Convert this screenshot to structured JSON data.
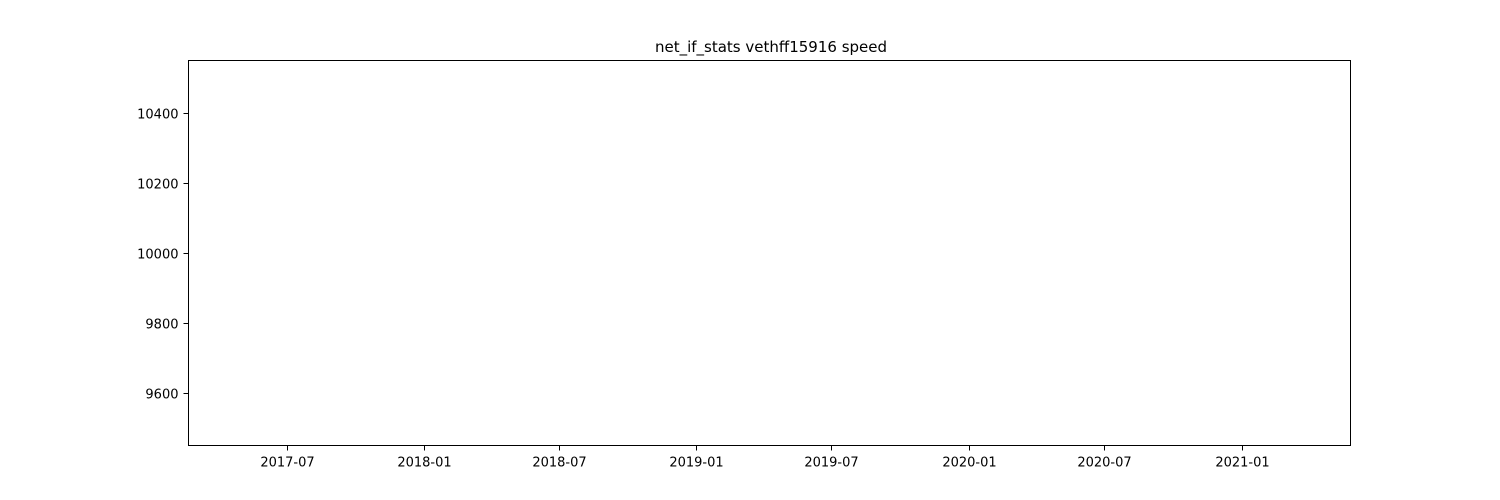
{
  "chart_data": {
    "type": "line",
    "title": "net_if_stats vethff15916 speed",
    "xlabel": "",
    "ylabel": "",
    "x_axis_type": "date",
    "xlim": [
      "2017-02-19",
      "2021-05-27"
    ],
    "ylim": [
      9450,
      10550
    ],
    "x_ticks": [
      "2017-07",
      "2018-01",
      "2018-07",
      "2019-01",
      "2019-07",
      "2020-01",
      "2020-07",
      "2021-01"
    ],
    "y_ticks": [
      9600,
      9800,
      10000,
      10200,
      10400
    ],
    "series": [
      {
        "values": []
      }
    ],
    "grid": false,
    "legend": "none"
  }
}
